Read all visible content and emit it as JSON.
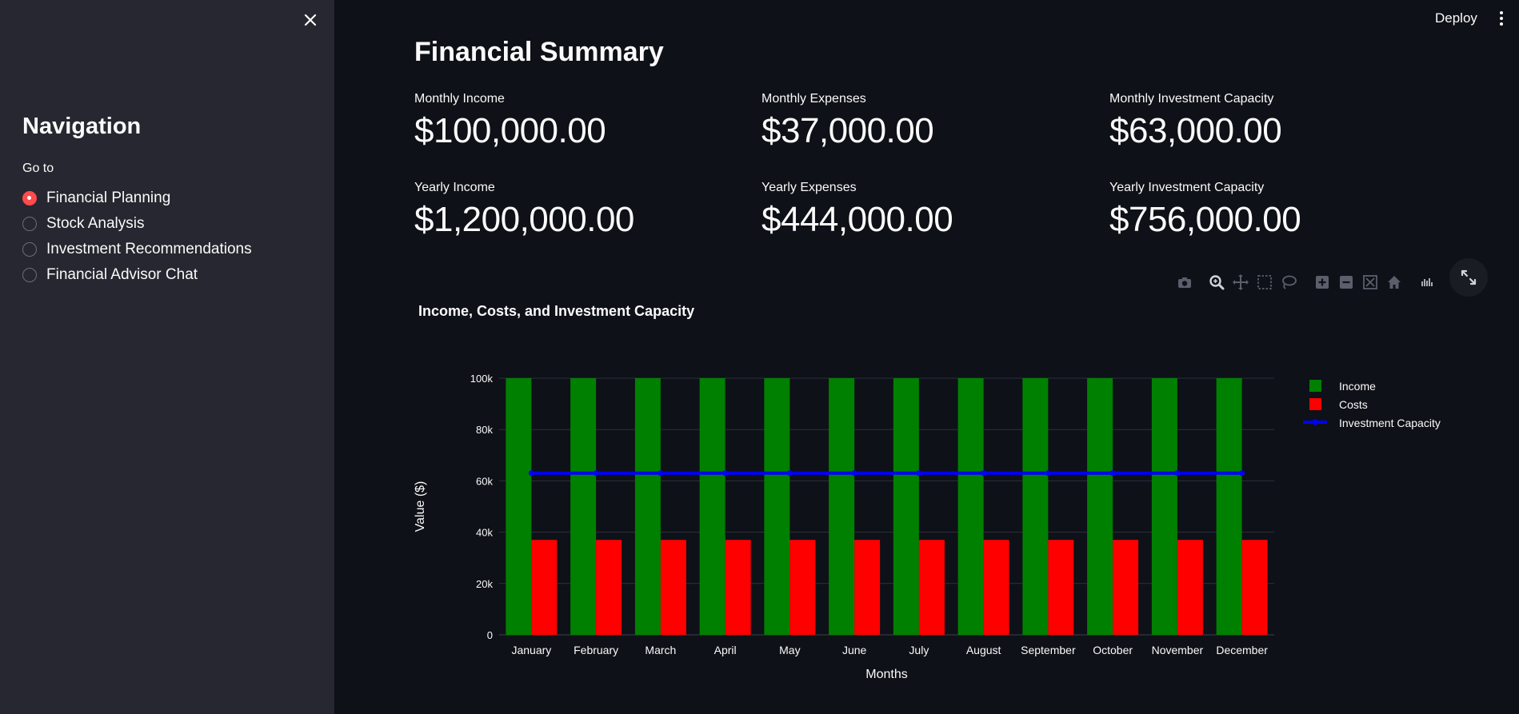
{
  "sidebar": {
    "title": "Navigation",
    "radio_label": "Go to",
    "options": [
      "Financial Planning",
      "Stock Analysis",
      "Investment Recommendations",
      "Financial Advisor Chat"
    ],
    "selected": "Financial Planning"
  },
  "header": {
    "deploy_label": "Deploy"
  },
  "main": {
    "title": "Financial Summary",
    "metrics": [
      {
        "label": "Monthly Income",
        "value": "$100,000.00"
      },
      {
        "label": "Monthly Expenses",
        "value": "$37,000.00"
      },
      {
        "label": "Monthly Investment Capacity",
        "value": "$63,000.00"
      },
      {
        "label": "Yearly Income",
        "value": "$1,200,000.00"
      },
      {
        "label": "Yearly Expenses",
        "value": "$444,000.00"
      },
      {
        "label": "Yearly Investment Capacity",
        "value": "$756,000.00"
      }
    ]
  },
  "colors": {
    "accent": "#ff4b4b",
    "background": "#0e1117",
    "sidebar": "#262730",
    "income": "#008000",
    "costs": "#ff0000",
    "investment": "#0000ff"
  },
  "chart_data": {
    "type": "bar",
    "title": "Income, Costs, and Investment Capacity",
    "xlabel": "Months",
    "ylabel": "Value ($)",
    "categories": [
      "January",
      "February",
      "March",
      "April",
      "May",
      "June",
      "July",
      "August",
      "September",
      "October",
      "November",
      "December"
    ],
    "series": [
      {
        "name": "Income",
        "type": "bar",
        "color": "#008000",
        "values": [
          100000,
          100000,
          100000,
          100000,
          100000,
          100000,
          100000,
          100000,
          100000,
          100000,
          100000,
          100000
        ]
      },
      {
        "name": "Costs",
        "type": "bar",
        "color": "#ff0000",
        "values": [
          37000,
          37000,
          37000,
          37000,
          37000,
          37000,
          37000,
          37000,
          37000,
          37000,
          37000,
          37000
        ]
      },
      {
        "name": "Investment Capacity",
        "type": "line",
        "color": "#0000ff",
        "values": [
          63000,
          63000,
          63000,
          63000,
          63000,
          63000,
          63000,
          63000,
          63000,
          63000,
          63000,
          63000
        ]
      }
    ],
    "ylim": [
      0,
      100000
    ],
    "yticks": [
      0,
      20000,
      40000,
      60000,
      80000,
      100000
    ],
    "ytick_labels": [
      "0",
      "20k",
      "40k",
      "60k",
      "80k",
      "100k"
    ],
    "grid": true,
    "legend_position": "top-right"
  }
}
